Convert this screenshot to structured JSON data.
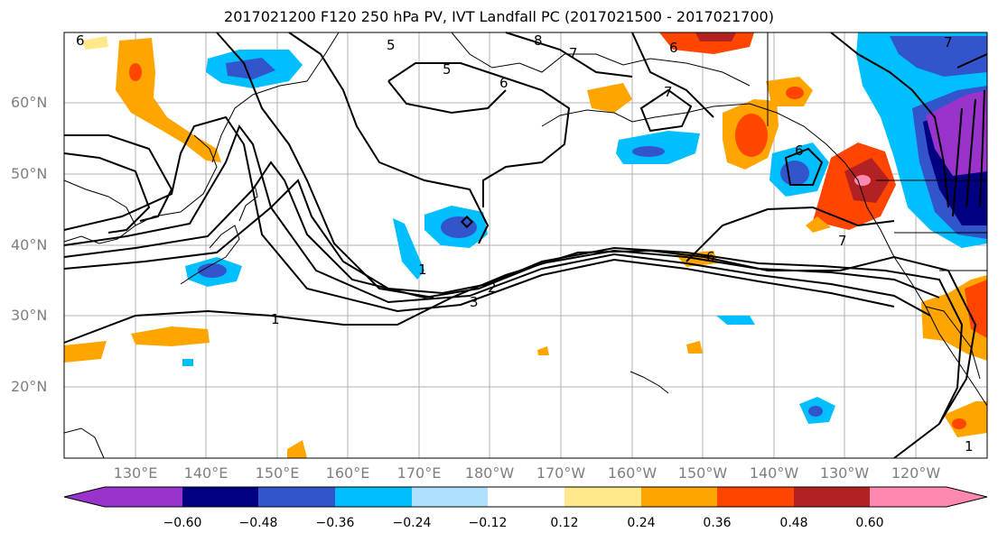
{
  "title": "2017021200 F120 250 hPa PV, IVT Landfall PC (2017021500 - 2017021700)",
  "map": {
    "lat_labels": [
      "60°N",
      "50°N",
      "40°N",
      "30°N",
      "20°N"
    ],
    "lon_labels": [
      "130°E",
      "140°E",
      "150°E",
      "160°E",
      "170°E",
      "180°W",
      "170°W",
      "160°W",
      "150°W",
      "140°W",
      "130°W",
      "120°W"
    ],
    "contour_labels": [
      "6",
      "5",
      "8",
      "7",
      "6",
      "5",
      "6",
      "7",
      "6",
      "7",
      "1",
      "3",
      "2",
      "6",
      "7",
      "1",
      "1"
    ],
    "colors": {
      "n060": "#9933cc",
      "n048": "#000080",
      "n036": "#3355cc",
      "n024": "#00bfff",
      "n012": "#b0e0ff",
      "p012": "#ffe98a",
      "p024": "#ffa500",
      "p036": "#ff4500",
      "p048": "#b22222",
      "p060": "#ff88b0",
      "land": "#000000",
      "grid": "#b0b0b0"
    }
  },
  "colorbar": {
    "ticks": [
      "−0.60",
      "−0.48",
      "−0.36",
      "−0.24",
      "−0.12",
      "0.12",
      "0.24",
      "0.36",
      "0.48",
      "0.60"
    ],
    "colors": [
      "#9933cc",
      "#000080",
      "#3355cc",
      "#00bfff",
      "#b0e0ff",
      "#ffffff",
      "#ffe98a",
      "#ffa500",
      "#ff4500",
      "#b22222",
      "#ff88b0"
    ]
  }
}
